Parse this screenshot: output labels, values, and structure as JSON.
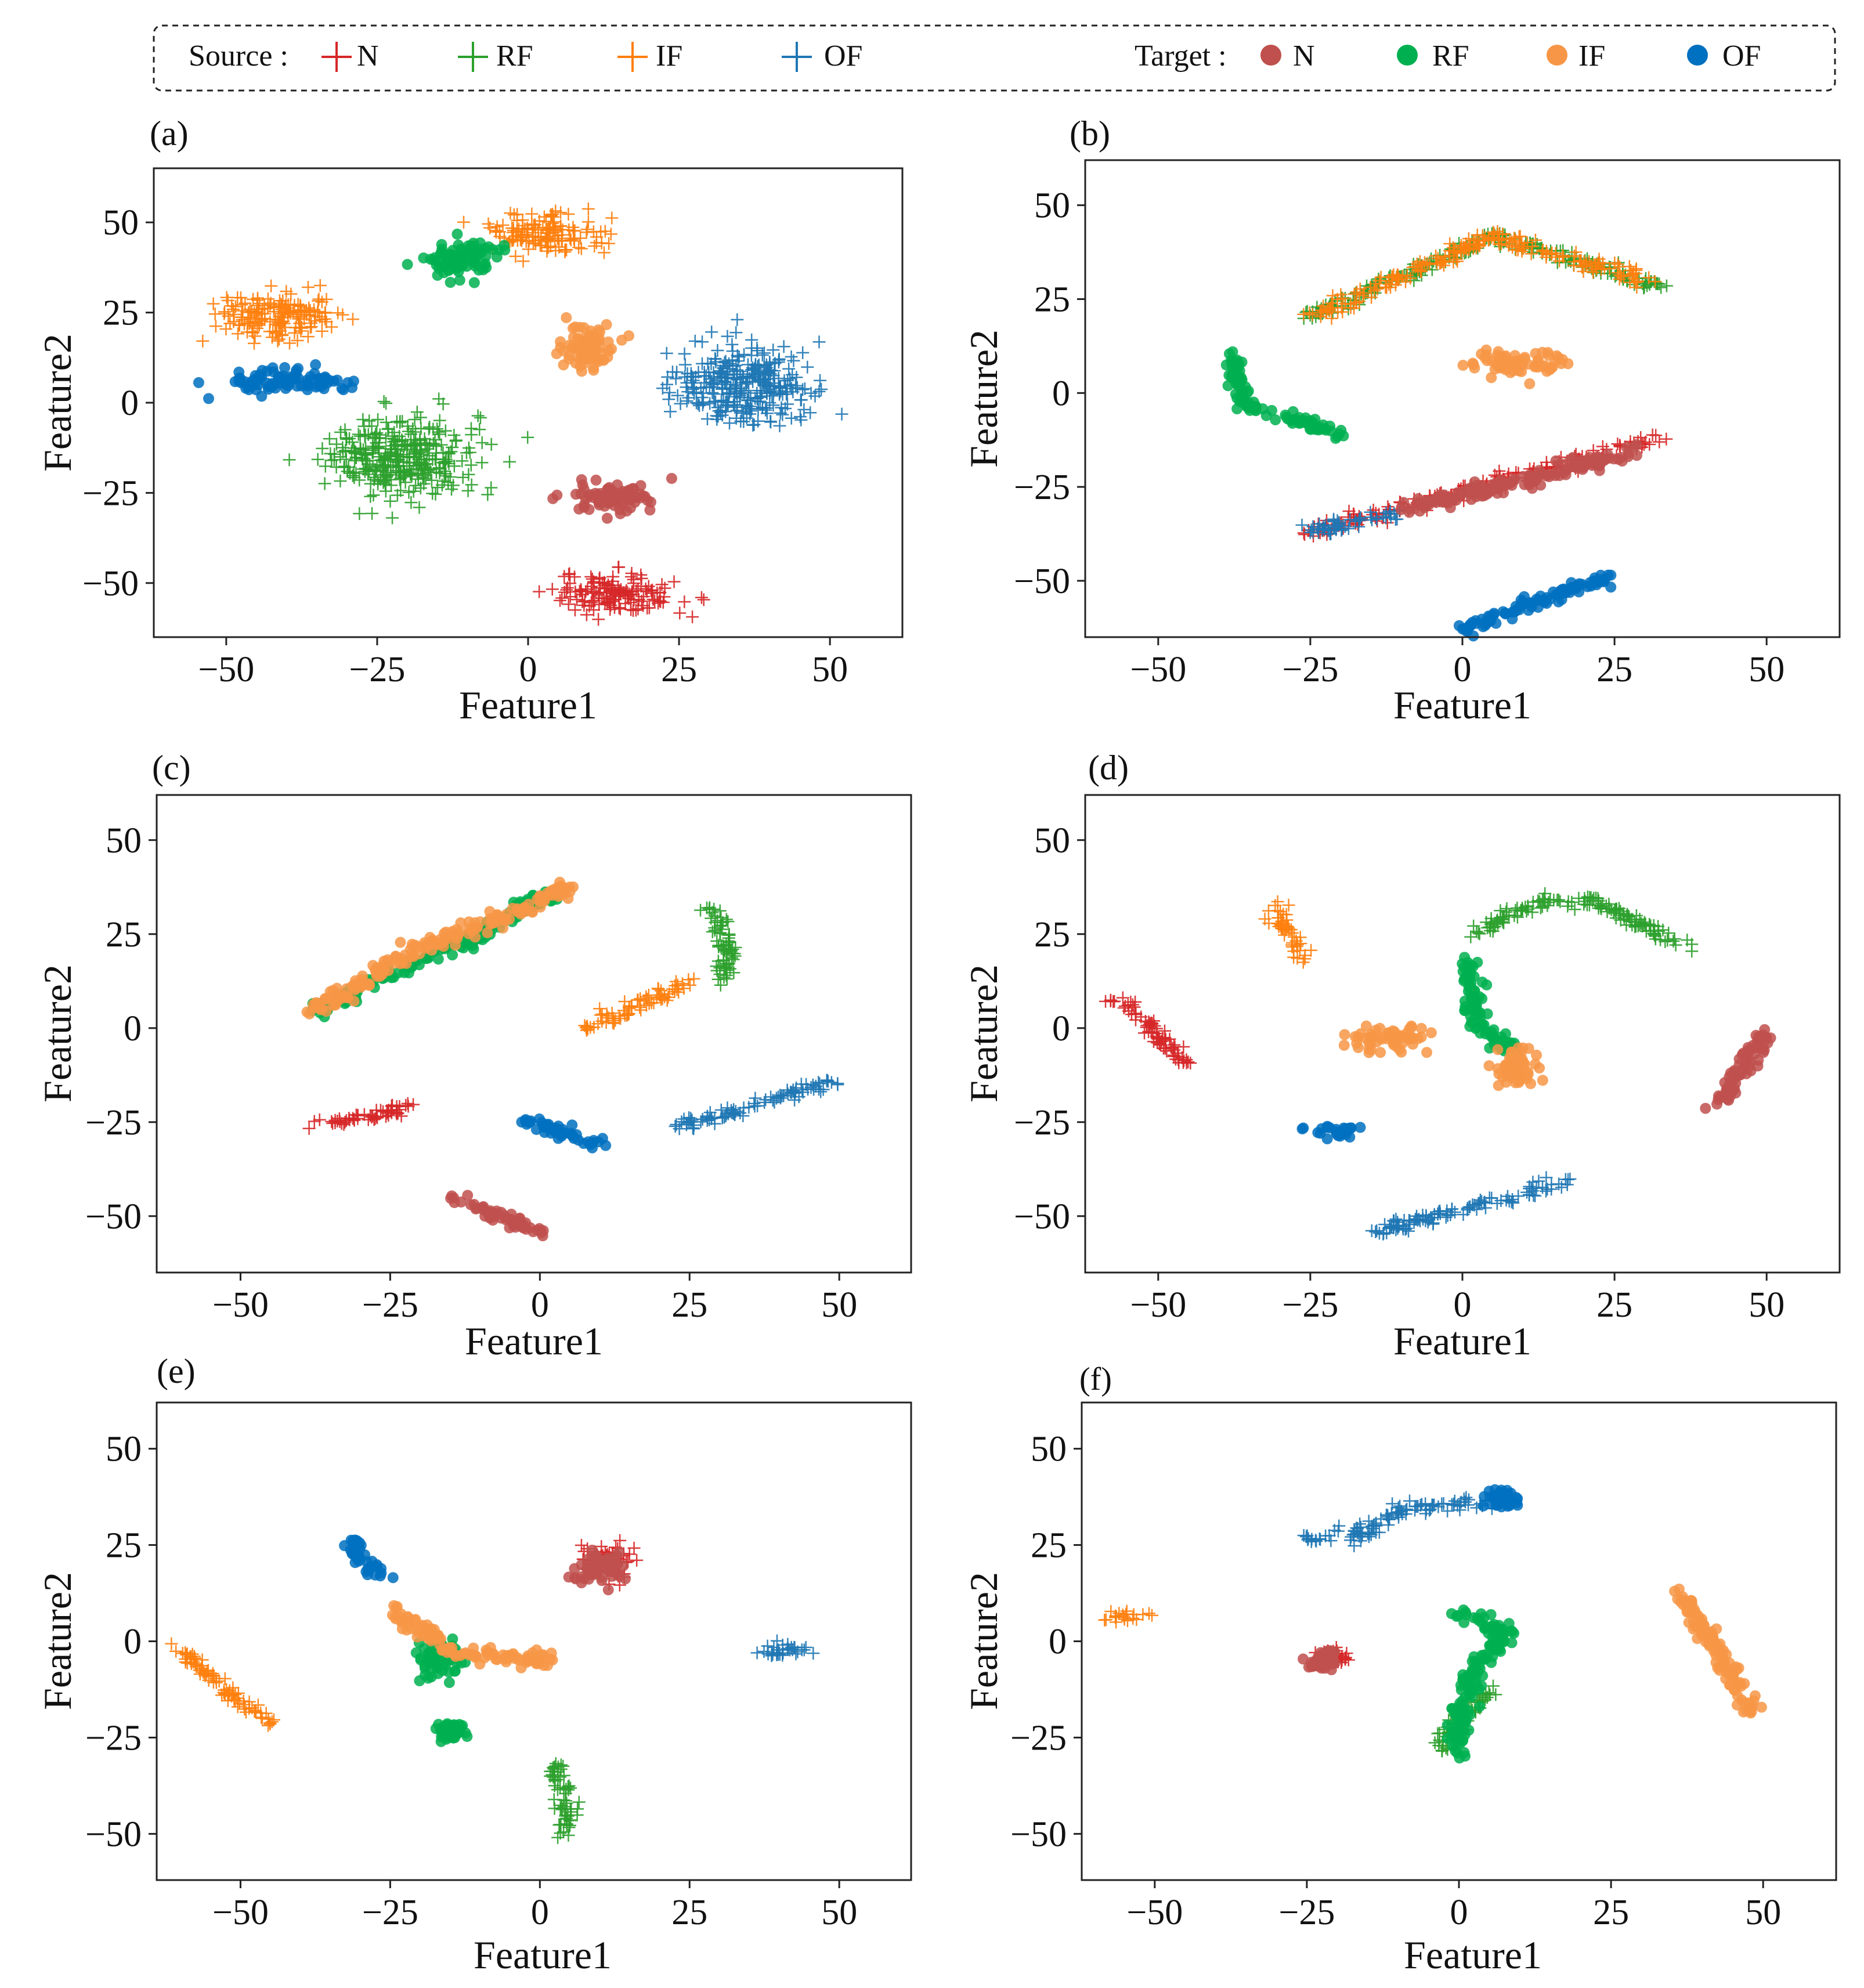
{
  "legend": {
    "source_label": "Source :",
    "target_label": "Target :",
    "classes": [
      {
        "name": "N",
        "color": "#d62728"
      },
      {
        "name": "RF",
        "color": "#2ca02c"
      },
      {
        "name": "IF",
        "color": "#ff7f0e"
      },
      {
        "name": "OF",
        "color": "#1f77b4"
      }
    ],
    "target_classes": [
      {
        "name": "N",
        "color": "#c0504d"
      },
      {
        "name": "RF",
        "color": "#00b050"
      },
      {
        "name": "IF",
        "color": "#f79646"
      },
      {
        "name": "OF",
        "color": "#0070c0"
      }
    ]
  },
  "chart_data": [
    {
      "type": "scatter",
      "panel": "(a)",
      "xlabel": "Feature1",
      "ylabel": "Feature2",
      "xlim": [
        -62,
        62
      ],
      "ylim": [
        -65,
        65
      ],
      "xticks": [
        -50,
        -25,
        0,
        25,
        50
      ],
      "yticks": [
        50,
        25,
        0,
        -25,
        -50
      ],
      "tick_labels_x": [
        "−50",
        "−25",
        "0",
        "25",
        "50"
      ],
      "tick_labels_y": [
        "50",
        "25",
        "0",
        "−25",
        "−50"
      ],
      "series": [
        {
          "name": "N",
          "domain": "source",
          "clusters": [
            [
              15,
              -53,
              9,
              5
            ]
          ]
        },
        {
          "name": "RF",
          "domain": "source",
          "clusters": [
            [
              -21,
              -15,
              11,
              10
            ]
          ]
        },
        {
          "name": "IF",
          "domain": "source",
          "clusters": [
            [
              -42,
              24,
              9,
              6
            ],
            [
              3,
              47,
              9,
              5
            ]
          ]
        },
        {
          "name": "OF",
          "domain": "source",
          "clusters": [
            [
              36,
              5,
              10,
              10
            ]
          ]
        },
        {
          "name": "N",
          "domain": "target",
          "clusters": [
            [
              14,
              -26,
              6,
              4
            ]
          ]
        },
        {
          "name": "RF",
          "domain": "target",
          "clusters": [
            [
              -11,
              40,
              5,
              5
            ]
          ]
        },
        {
          "name": "IF",
          "domain": "target",
          "clusters": [
            [
              10,
              15,
              4,
              6
            ]
          ]
        },
        {
          "name": "OF",
          "domain": "target",
          "clusters": [
            [
              -40,
              6,
              9,
              3
            ]
          ]
        }
      ]
    },
    {
      "type": "scatter",
      "panel": "(b)",
      "xlabel": "Feature1",
      "ylabel": "Feature2",
      "xlim": [
        -62,
        62
      ],
      "ylim": [
        -65,
        62
      ],
      "xticks": [
        -50,
        -25,
        0,
        25,
        50
      ],
      "yticks": [
        50,
        25,
        0,
        -25,
        -50
      ],
      "tick_labels_x": [
        "−50",
        "−25",
        "0",
        "25",
        "50"
      ],
      "tick_labels_y": [
        "50",
        "25",
        "0",
        "−25",
        "−50"
      ],
      "series": [
        {
          "name": "N",
          "domain": "source",
          "path": [
            [
              -25,
              -37
            ],
            [
              33,
              -12
            ]
          ]
        },
        {
          "name": "RF",
          "domain": "source",
          "path": [
            [
              -25,
              20
            ],
            [
              5,
              42
            ],
            [
              33,
              28
            ]
          ]
        },
        {
          "name": "IF",
          "domain": "source",
          "path": [
            [
              -25,
              20
            ],
            [
              5,
              42
            ],
            [
              30,
              30
            ]
          ]
        },
        {
          "name": "OF",
          "domain": "source",
          "path": [
            [
              -25,
              -37
            ],
            [
              -10,
              -32
            ]
          ]
        },
        {
          "name": "N",
          "domain": "target",
          "path": [
            [
              -10,
              -31
            ],
            [
              28,
              -16
            ]
          ]
        },
        {
          "name": "RF",
          "domain": "target",
          "path": [
            [
              -38,
              10
            ],
            [
              -36,
              -3
            ],
            [
              -20,
              -11
            ]
          ]
        },
        {
          "name": "IF",
          "domain": "target",
          "clusters": [
            [
              8,
              8,
              7,
              3
            ]
          ]
        },
        {
          "name": "OF",
          "domain": "target",
          "path": [
            [
              0,
              -63
            ],
            [
              24,
              -49
            ]
          ]
        }
      ]
    },
    {
      "type": "scatter",
      "panel": "(c)",
      "xlabel": "Feature1",
      "ylabel": "Feature2",
      "xlim": [
        -64,
        62
      ],
      "ylim": [
        -65,
        62
      ],
      "xticks": [
        -50,
        -25,
        0,
        25,
        50
      ],
      "yticks": [
        50,
        25,
        0,
        -25,
        -50
      ],
      "tick_labels_x": [
        "−50",
        "−25",
        "0",
        "25",
        "50"
      ],
      "tick_labels_y": [
        "50",
        "25",
        "0",
        "−25",
        "−50"
      ],
      "series": [
        {
          "name": "N",
          "domain": "source",
          "path": [
            [
              -38,
              -26
            ],
            [
              -22,
              -21
            ]
          ]
        },
        {
          "name": "RF",
          "domain": "source",
          "path": [
            [
              28,
              32
            ],
            [
              32,
              20
            ],
            [
              30,
              12
            ]
          ]
        },
        {
          "name": "IF",
          "domain": "source",
          "path": [
            [
              7,
              0
            ],
            [
              25,
              12
            ]
          ]
        },
        {
          "name": "OF",
          "domain": "source",
          "path": [
            [
              24,
              -26
            ],
            [
              49,
              -14
            ]
          ]
        },
        {
          "name": "N",
          "domain": "target",
          "path": [
            [
              -15,
              -46
            ],
            [
              0,
              -54
            ]
          ]
        },
        {
          "name": "RF",
          "domain": "target",
          "path": [
            [
              -38,
              4
            ],
            [
              -25,
              15
            ],
            [
              -10,
              25
            ],
            [
              3,
              37
            ]
          ]
        },
        {
          "name": "IF",
          "domain": "target",
          "path": [
            [
              -38,
              4
            ],
            [
              -22,
              20
            ],
            [
              -5,
              30
            ],
            [
              5,
              38
            ]
          ]
        },
        {
          "name": "OF",
          "domain": "target",
          "path": [
            [
              -3,
              -24
            ],
            [
              10,
              -31
            ]
          ]
        }
      ]
    },
    {
      "type": "scatter",
      "panel": "(d)",
      "xlabel": "Feature1",
      "ylabel": "Feature2",
      "xlim": [
        -62,
        62
      ],
      "ylim": [
        -65,
        62
      ],
      "xticks": [
        -50,
        -25,
        0,
        25,
        50
      ],
      "yticks": [
        50,
        25,
        0,
        -25,
        -50
      ],
      "tick_labels_x": [
        "−50",
        "−25",
        "0",
        "25",
        "50"
      ],
      "tick_labels_y": [
        "50",
        "25",
        "0",
        "−25",
        "−50"
      ],
      "series": [
        {
          "name": "N",
          "domain": "source",
          "path": [
            [
              -57,
              8
            ],
            [
              -45,
              -10
            ]
          ]
        },
        {
          "name": "RF",
          "domain": "source",
          "path": [
            [
              2,
              25
            ],
            [
              12,
              33
            ],
            [
              22,
              34
            ],
            [
              37,
              21
            ]
          ]
        },
        {
          "name": "IF",
          "domain": "source",
          "path": [
            [
              -31,
              32
            ],
            [
              -26,
              18
            ]
          ]
        },
        {
          "name": "OF",
          "domain": "source",
          "path": [
            [
              -14,
              -54
            ],
            [
              17,
              -41
            ]
          ]
        },
        {
          "name": "N",
          "domain": "target",
          "path": [
            [
              42,
              -20
            ],
            [
              50,
              -1
            ]
          ]
        },
        {
          "name": "RF",
          "domain": "target",
          "path": [
            [
              1,
              18
            ],
            [
              2,
              2
            ],
            [
              10,
              -8
            ]
          ]
        },
        {
          "name": "IF",
          "domain": "target",
          "clusters": [
            [
              -12,
              -3,
              6,
              3
            ],
            [
              9,
              -10,
              3,
              5
            ]
          ]
        },
        {
          "name": "OF",
          "domain": "target",
          "path": [
            [
              -25,
              -27
            ],
            [
              -17,
              -28
            ]
          ]
        }
      ]
    },
    {
      "type": "scatter",
      "panel": "(e)",
      "xlabel": "Feature1",
      "ylabel": "Feature2",
      "xlim": [
        -64,
        62
      ],
      "ylim": [
        -62,
        62
      ],
      "xticks": [
        -50,
        -25,
        0,
        25,
        50
      ],
      "yticks": [
        50,
        25,
        0,
        -25,
        -50
      ],
      "tick_labels_x": [
        "−50",
        "−25",
        "0",
        "25",
        "50"
      ],
      "tick_labels_y": [
        "50",
        "25",
        "0",
        "−25",
        "−50"
      ],
      "series": [
        {
          "name": "N",
          "domain": "source",
          "clusters": [
            [
              12,
              21,
              4,
              4
            ]
          ]
        },
        {
          "name": "RF",
          "domain": "source",
          "path": [
            [
              2,
              -32
            ],
            [
              5,
              -40
            ],
            [
              4,
              -50
            ]
          ]
        },
        {
          "name": "IF",
          "domain": "source",
          "path": [
            [
              -61,
              -1
            ],
            [
              -53,
              -12
            ],
            [
              -45,
              -21
            ]
          ]
        },
        {
          "name": "OF",
          "domain": "source",
          "path": [
            [
              37,
              -3
            ],
            [
              46,
              -2
            ]
          ]
        },
        {
          "name": "N",
          "domain": "target",
          "clusters": [
            [
              10,
              19,
              4,
              4
            ]
          ]
        },
        {
          "name": "RF",
          "domain": "target",
          "clusters": [
            [
              -17,
              -5,
              4,
              5
            ],
            [
              -15,
              -23,
              2,
              2
            ]
          ]
        },
        {
          "name": "IF",
          "domain": "target",
          "path": [
            [
              -24,
              8
            ],
            [
              -15,
              -3
            ],
            [
              2,
              -5
            ]
          ]
        },
        {
          "name": "OF",
          "domain": "target",
          "path": [
            [
              -33,
              27
            ],
            [
              -27,
              17
            ]
          ]
        }
      ]
    },
    {
      "type": "scatter",
      "panel": "(f)",
      "xlabel": "Feature1",
      "ylabel": "Feature2",
      "xlim": [
        -62,
        62
      ],
      "ylim": [
        -62,
        62
      ],
      "xticks": [
        -50,
        -25,
        0,
        25,
        50
      ],
      "yticks": [
        50,
        25,
        0,
        -25,
        -50
      ],
      "tick_labels_x": [
        "−50",
        "−25",
        "0",
        "25",
        "50"
      ],
      "tick_labels_y": [
        "50",
        "25",
        "0",
        "−25",
        "−50"
      ],
      "series": [
        {
          "name": "N",
          "domain": "source",
          "clusters": [
            [
              -21,
              -4,
              2,
              2
            ]
          ]
        },
        {
          "name": "RF",
          "domain": "source",
          "path": [
            [
              6,
              -12
            ],
            [
              0,
              -20
            ],
            [
              -3,
              -28
            ]
          ]
        },
        {
          "name": "IF",
          "domain": "source",
          "path": [
            [
              -58,
              7
            ],
            [
              -52,
              7
            ]
          ]
        },
        {
          "name": "OF",
          "domain": "source",
          "path": [
            [
              -25,
              27
            ],
            [
              -16,
              28
            ],
            [
              -10,
              34
            ],
            [
              5,
              36
            ]
          ]
        },
        {
          "name": "N",
          "domain": "target",
          "clusters": [
            [
              -22,
              -5,
              2,
              2
            ]
          ]
        },
        {
          "name": "RF",
          "domain": "target",
          "path": [
            [
              0,
              8
            ],
            [
              8,
              2
            ],
            [
              2,
              -8
            ],
            [
              -1,
              -31
            ]
          ]
        },
        {
          "name": "IF",
          "domain": "target",
          "path": [
            [
              36,
              13
            ],
            [
              43,
              -4
            ],
            [
              48,
              -18
            ]
          ]
        },
        {
          "name": "OF",
          "domain": "target",
          "clusters": [
            [
              7,
              37,
              2,
              2
            ]
          ]
        }
      ]
    }
  ]
}
